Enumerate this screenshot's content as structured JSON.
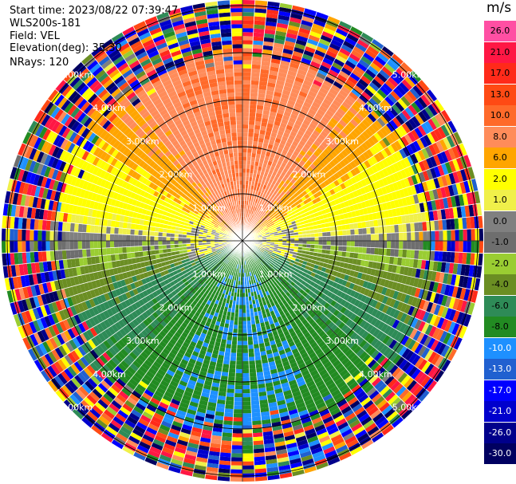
{
  "header": {
    "start_time": "Start time: 2023/08/22 07:39:47",
    "instrument": "WLS200s-181",
    "field": "Field: VEL",
    "elevation": "Elevation(deg): 35.30",
    "nrays": "NRays: 120"
  },
  "colorbar": {
    "unit": "m/s",
    "ticks": [
      "26.0",
      "21.0",
      "17.0",
      "13.0",
      "10.0",
      "8.0",
      "6.0",
      "2.0",
      "1.0",
      "0.0",
      "-1.0",
      "-2.0",
      "-4.0",
      "-6.0",
      "-8.0",
      "-10.0",
      "-13.0",
      "-17.0",
      "-21.0",
      "-26.0",
      "-30.0"
    ],
    "colors": [
      "#ff4fa3",
      "#ff1744",
      "#ff2a1a",
      "#ff4a14",
      "#ff6a2a",
      "#ff8c5a",
      "#ffa500",
      "#ffff00",
      "#f0f04a",
      "#808080",
      "#6e6e6e",
      "#9acd32",
      "#6b8e23",
      "#2e8b57",
      "#228b22",
      "#1e90ff",
      "#2060d0",
      "#0000ff",
      "#0000cd",
      "#00008b",
      "#000060"
    ]
  },
  "chart_data": {
    "type": "heatmap",
    "title": "",
    "variable": "VEL",
    "unit": "m/s",
    "n_rays": 120,
    "elevation_deg": 35.3,
    "range_rings_km": [
      "1.00km",
      "2.00km",
      "3.00km",
      "4.00km",
      "5.00km"
    ],
    "color_range": [
      -30.0,
      26.0
    ],
    "pattern": {
      "north_sector_ms": 10.0,
      "center_ms": 2.0,
      "south_sector_ms": -8.0,
      "east_ms": -2.0,
      "west_ms": 0.0,
      "noise_beyond_km": 4.0
    }
  }
}
